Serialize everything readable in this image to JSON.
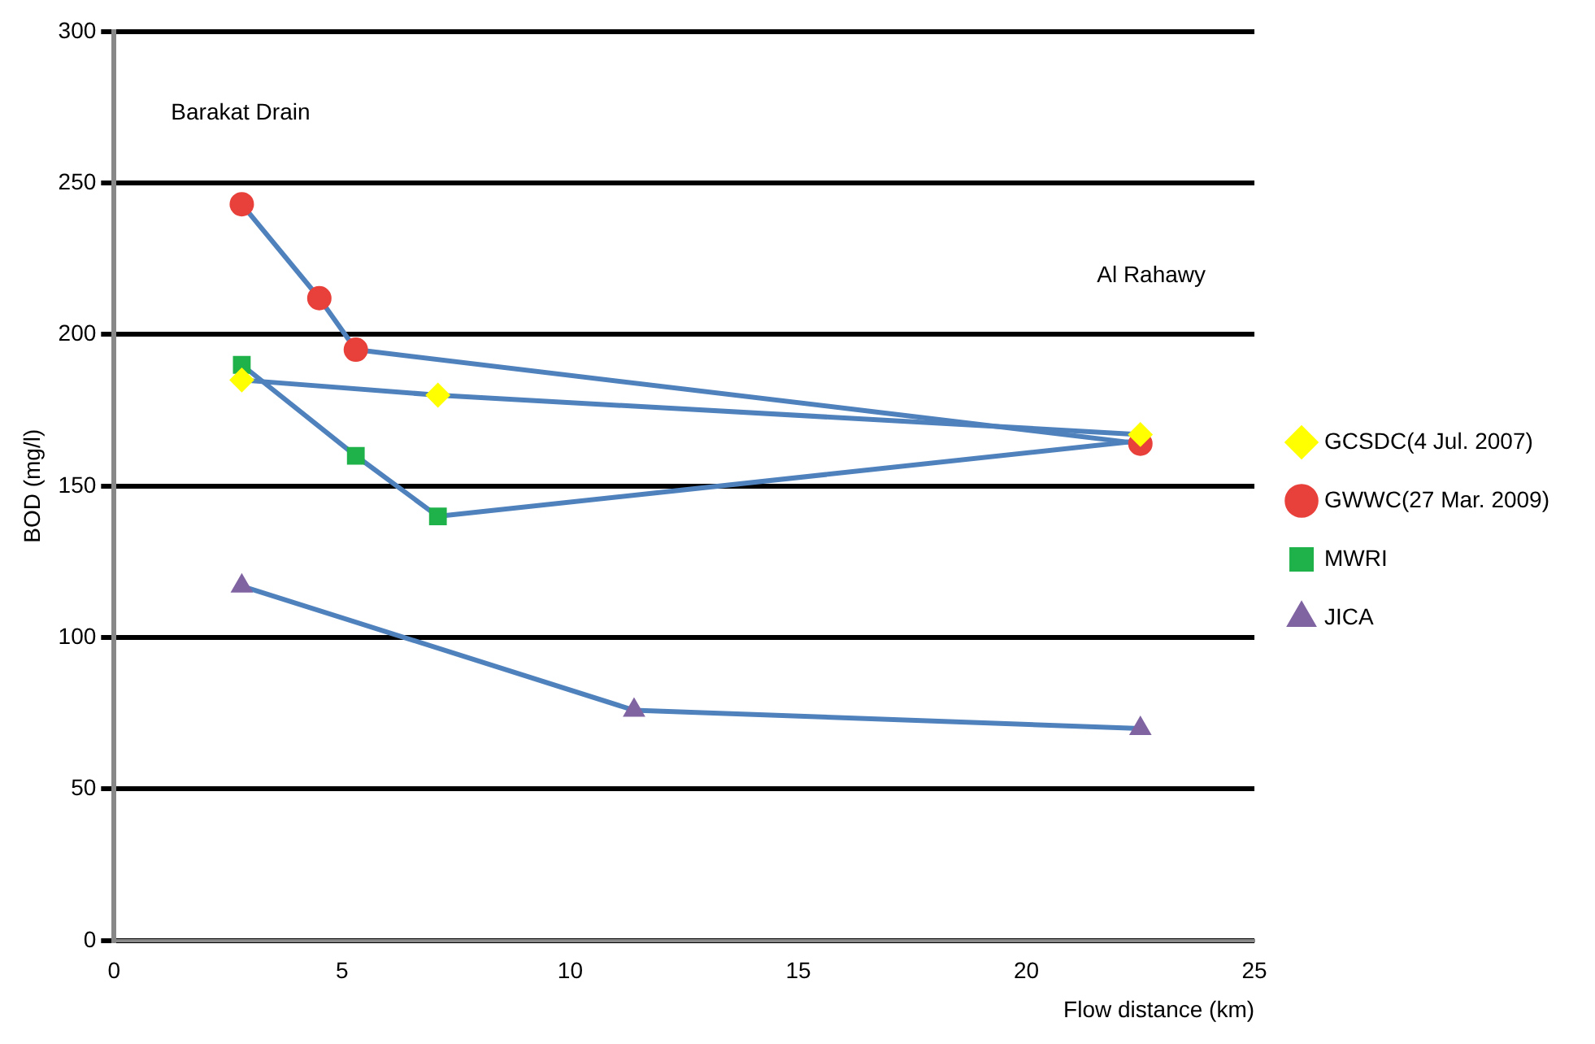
{
  "chart_data": {
    "type": "line",
    "xlabel": "Flow distance (km)",
    "ylabel": "BOD (mg/l)",
    "xlim": [
      0,
      25
    ],
    "xticks": [
      0,
      5,
      10,
      15,
      20,
      25
    ],
    "ylim": [
      0,
      300
    ],
    "yticks": [
      0,
      50,
      100,
      150,
      200,
      250,
      300
    ],
    "grid": "y",
    "legend": "right",
    "annotations": [
      "Barakat Drain",
      "Al Rahawy"
    ],
    "series": [
      {
        "name": "GCSDC(4 Jul. 2007)",
        "color": "#ffff00",
        "marker": "diamond",
        "x": [
          2.8,
          7.1,
          22.5
        ],
        "values": [
          185,
          180,
          167
        ]
      },
      {
        "name": "GWWC(27 Mar. 2009)",
        "color": "#e8403a",
        "marker": "circle",
        "x": [
          2.8,
          4.5,
          5.3,
          22.5
        ],
        "values": [
          243,
          212,
          195,
          164
        ]
      },
      {
        "name": "MWRI",
        "color": "#1fb14a",
        "marker": "square",
        "x": [
          2.8,
          5.3,
          7.1,
          22.5
        ],
        "values": [
          190,
          160,
          140,
          165
        ]
      },
      {
        "name": "JICA",
        "color": "#8064a2",
        "marker": "triangle",
        "x": [
          2.8,
          11.4,
          22.5
        ],
        "values": [
          117,
          76,
          70
        ]
      }
    ]
  }
}
